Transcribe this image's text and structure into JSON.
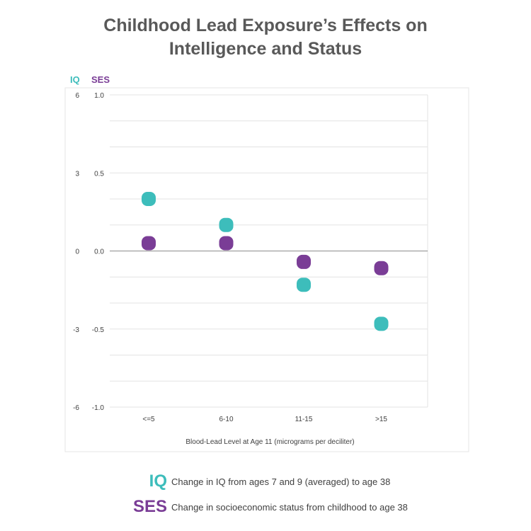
{
  "title_line1": "Childhood Lead Exposure’s Effects on",
  "title_line2": "Intelligence and Status",
  "colors": {
    "iq": "#3dbdbb",
    "ses": "#7a3d96",
    "title": "#595959"
  },
  "chart_data": {
    "type": "scatter",
    "title": "Childhood Lead Exposure’s Effects on Intelligence and Status",
    "xlabel": "Blood-Lead Level at Age 11 (micrograms per deciliter)",
    "categories": [
      "<=5",
      "6-10",
      "11-15",
      ">15"
    ],
    "left_axis": {
      "label": "IQ",
      "ylim": [
        -6,
        6
      ],
      "ticks": [
        "6",
        "3",
        "0",
        "-3",
        "-6"
      ]
    },
    "right_axis": {
      "label": "SES",
      "ylim": [
        -1.0,
        1.0
      ],
      "ticks": [
        "1.0",
        "0.5",
        "0.0",
        "-0.5",
        "-1.0"
      ]
    },
    "grid": true,
    "series": [
      {
        "name": "IQ",
        "axis": "left",
        "values": [
          2.0,
          1.0,
          -1.3,
          -2.8
        ]
      },
      {
        "name": "SES",
        "axis": "right",
        "values": [
          0.05,
          0.05,
          -0.07,
          -0.11
        ]
      }
    ]
  },
  "legend": [
    {
      "key": "IQ",
      "text": "Change in IQ from ages 7 and 9 (averaged) to age 38"
    },
    {
      "key": "SES",
      "text": "Change in socioeconomic status from childhood to age 38"
    }
  ]
}
